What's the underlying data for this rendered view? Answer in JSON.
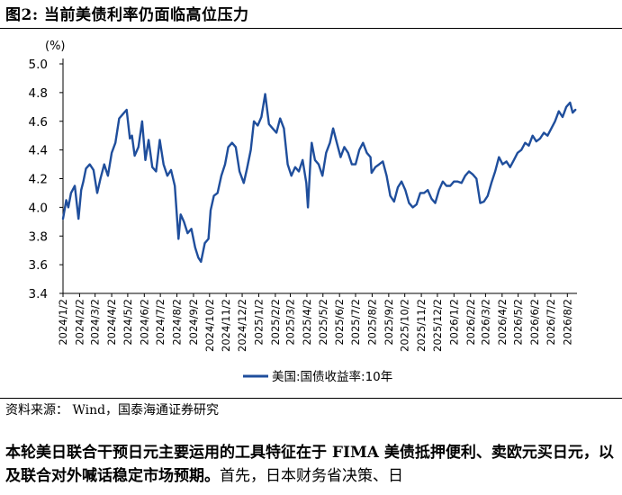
{
  "figure": {
    "title": "图2:  当前美债利率仍面临高位压力",
    "source": "资料来源：  Wind，国泰海通证券研究"
  },
  "paragraph": {
    "bold": "本轮美日联合干预日元主要运用的工具特征在于 FIMA 美债抵押便利、卖欧元买日元，以及联合对外喊话稳定市场预期。",
    "normal": "首先，日本财务省决策、日"
  },
  "colors": {
    "line": "#1f4e9c"
  },
  "chart_data": {
    "type": "line",
    "title": "",
    "xlabel": "",
    "ylabel": "(%)",
    "ylim": [
      3.4,
      5.0
    ],
    "yticks": [
      3.4,
      3.6,
      3.8,
      4.0,
      4.2,
      4.4,
      4.6,
      4.8,
      5.0
    ],
    "ytick_labels": [
      "3.4",
      "3.6",
      "3.8",
      "4.0",
      "4.2",
      "4.4",
      "4.6",
      "4.8",
      "5.0"
    ],
    "xlim": [
      "2024-01-02",
      "2026-08-20"
    ],
    "xtick_labels": [
      "2024/1/2",
      "2024/2/2",
      "2024/3/2",
      "2024/4/2",
      "2024/5/2",
      "2024/6/2",
      "2024/7/2",
      "2024/8/2",
      "2024/9/2",
      "2024/10/2",
      "2024/11/2",
      "2024/12/2",
      "2025/1/2",
      "2025/2/2",
      "2025/3/2",
      "2025/4/2",
      "2025/5/2",
      "2025/6/2",
      "2025/7/2",
      "2025/8/2",
      "2025/9/2",
      "2025/10/2",
      "2025/11/2",
      "2025/12/2",
      "2026/1/2",
      "2026/2/2",
      "2026/3/2",
      "2026/4/2",
      "2026/5/2",
      "2026/6/2",
      "2026/7/2",
      "2026/8/2"
    ],
    "legend": {
      "placement": "bottom",
      "entries": [
        "美国:国债收益率:10年"
      ]
    },
    "series": [
      {
        "name": "美国:国债收益率:10年",
        "x": [
          "2024-01-02",
          "2024-01-08",
          "2024-01-12",
          "2024-01-17",
          "2024-01-24",
          "2024-01-31",
          "2024-02-05",
          "2024-02-09",
          "2024-02-14",
          "2024-02-21",
          "2024-02-28",
          "2024-03-06",
          "2024-03-12",
          "2024-03-19",
          "2024-03-26",
          "2024-04-02",
          "2024-04-09",
          "2024-04-16",
          "2024-04-23",
          "2024-04-30",
          "2024-05-06",
          "2024-05-10",
          "2024-05-15",
          "2024-05-22",
          "2024-05-29",
          "2024-06-04",
          "2024-06-10",
          "2024-06-17",
          "2024-06-24",
          "2024-07-01",
          "2024-07-08",
          "2024-07-15",
          "2024-07-22",
          "2024-07-29",
          "2024-08-05",
          "2024-08-09",
          "2024-08-15",
          "2024-08-22",
          "2024-08-29",
          "2024-09-05",
          "2024-09-11",
          "2024-09-16",
          "2024-09-23",
          "2024-09-30",
          "2024-10-04",
          "2024-10-10",
          "2024-10-17",
          "2024-10-24",
          "2024-10-31",
          "2024-11-06",
          "2024-11-13",
          "2024-11-20",
          "2024-11-27",
          "2024-12-05",
          "2024-12-11",
          "2024-12-18",
          "2024-12-24",
          "2024-12-31",
          "2025-01-07",
          "2025-01-14",
          "2025-01-21",
          "2025-01-28",
          "2025-02-04",
          "2025-02-11",
          "2025-02-18",
          "2025-02-25",
          "2025-03-04",
          "2025-03-11",
          "2025-03-18",
          "2025-03-25",
          "2025-04-01",
          "2025-04-04",
          "2025-04-09",
          "2025-04-11",
          "2025-04-17",
          "2025-04-24",
          "2025-05-01",
          "2025-05-08",
          "2025-05-15",
          "2025-05-21",
          "2025-05-28",
          "2025-06-04",
          "2025-06-11",
          "2025-06-18",
          "2025-06-25",
          "2025-07-02",
          "2025-07-09",
          "2025-07-16",
          "2025-07-23",
          "2025-07-30",
          "2025-08-01",
          "2025-08-08",
          "2025-08-15",
          "2025-08-22",
          "2025-08-29",
          "2025-09-05",
          "2025-09-12",
          "2025-09-19",
          "2025-09-26",
          "2025-10-03",
          "2025-10-10",
          "2025-10-17",
          "2025-10-24",
          "2025-10-31",
          "2025-11-07",
          "2025-11-14",
          "2025-11-21",
          "2025-11-28",
          "2025-12-05",
          "2025-12-12",
          "2025-12-19",
          "2025-12-26",
          "2026-01-02",
          "2026-01-09",
          "2026-01-16",
          "2026-01-23",
          "2026-01-30",
          "2026-02-06",
          "2026-02-13",
          "2026-02-20",
          "2026-02-27",
          "2026-03-06",
          "2026-03-13",
          "2026-03-20",
          "2026-03-27",
          "2026-04-03",
          "2026-04-10",
          "2026-04-17",
          "2026-04-24",
          "2026-05-01",
          "2026-05-08",
          "2026-05-15",
          "2026-05-22",
          "2026-05-29",
          "2026-06-05",
          "2026-06-12",
          "2026-06-19",
          "2026-06-26",
          "2026-07-03",
          "2026-07-10",
          "2026-07-17",
          "2026-07-24",
          "2026-07-31",
          "2026-08-07",
          "2026-08-12",
          "2026-08-17"
        ],
        "values": [
          3.92,
          4.05,
          4.0,
          4.1,
          4.15,
          3.92,
          4.12,
          4.18,
          4.27,
          4.3,
          4.26,
          4.1,
          4.2,
          4.3,
          4.22,
          4.38,
          4.45,
          4.62,
          4.65,
          4.68,
          4.48,
          4.5,
          4.36,
          4.42,
          4.6,
          4.33,
          4.47,
          4.28,
          4.25,
          4.47,
          4.3,
          4.22,
          4.26,
          4.15,
          3.78,
          3.95,
          3.9,
          3.82,
          3.85,
          3.72,
          3.65,
          3.62,
          3.75,
          3.78,
          3.98,
          4.08,
          4.1,
          4.22,
          4.3,
          4.42,
          4.45,
          4.42,
          4.25,
          4.17,
          4.27,
          4.4,
          4.6,
          4.57,
          4.63,
          4.79,
          4.58,
          4.55,
          4.52,
          4.62,
          4.55,
          4.3,
          4.22,
          4.28,
          4.25,
          4.33,
          4.17,
          4.0,
          4.35,
          4.45,
          4.33,
          4.3,
          4.22,
          4.38,
          4.45,
          4.55,
          4.45,
          4.35,
          4.42,
          4.38,
          4.3,
          4.3,
          4.4,
          4.45,
          4.38,
          4.35,
          4.24,
          4.28,
          4.3,
          4.32,
          4.22,
          4.08,
          4.04,
          4.14,
          4.18,
          4.12,
          4.03,
          4.0,
          4.02,
          4.1,
          4.1,
          4.12,
          4.06,
          4.03,
          4.12,
          4.18,
          4.15,
          4.15,
          4.18,
          4.18,
          4.17,
          4.22,
          4.25,
          4.23,
          4.2,
          4.03,
          4.04,
          4.08,
          4.17,
          4.25,
          4.35,
          4.3,
          4.32,
          4.28,
          4.33,
          4.38,
          4.4,
          4.45,
          4.43,
          4.5,
          4.46,
          4.48,
          4.52,
          4.5,
          4.55,
          4.6,
          4.67,
          4.63,
          4.7,
          4.73,
          4.66,
          4.68
        ]
      }
    ]
  }
}
